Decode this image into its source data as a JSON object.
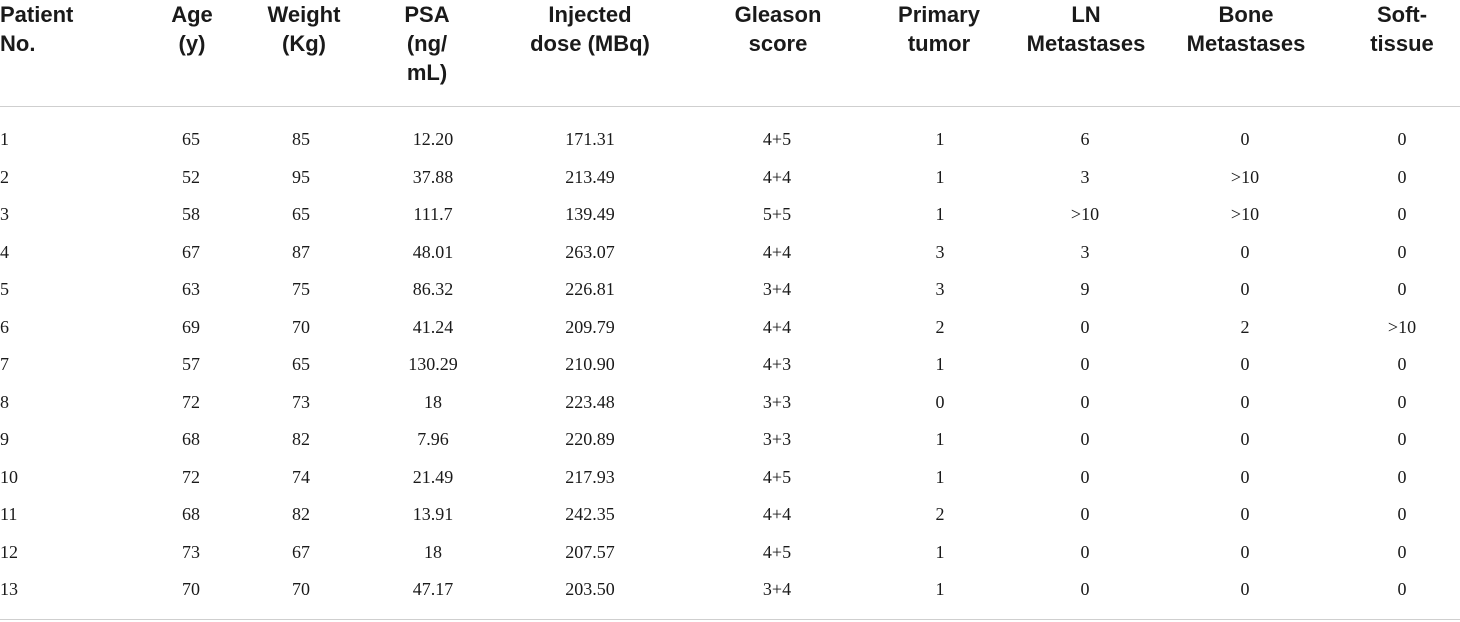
{
  "table": {
    "headers": [
      {
        "key": "patient",
        "label": "Patient No."
      },
      {
        "key": "age",
        "label": "Age (y)"
      },
      {
        "key": "weight",
        "label": "Weight (Kg)"
      },
      {
        "key": "psa",
        "label": "PSA (ng/ mL)"
      },
      {
        "key": "dose",
        "label": "Injected dose (MBq)"
      },
      {
        "key": "gleason",
        "label": "Gleason score"
      },
      {
        "key": "primary",
        "label": "Primary tumor"
      },
      {
        "key": "ln",
        "label": "LN Metastases"
      },
      {
        "key": "bone",
        "label": "Bone Metastases"
      },
      {
        "key": "soft",
        "label": "Soft-tissue"
      }
    ],
    "rows": [
      [
        "1",
        "65",
        "85",
        "12.20",
        "171.31",
        "4+5",
        "1",
        "6",
        "0",
        "0"
      ],
      [
        "2",
        "52",
        "95",
        "37.88",
        "213.49",
        "4+4",
        "1",
        "3",
        ">10",
        "0"
      ],
      [
        "3",
        "58",
        "65",
        "111.7",
        "139.49",
        "5+5",
        "1",
        ">10",
        ">10",
        "0"
      ],
      [
        "4",
        "67",
        "87",
        "48.01",
        "263.07",
        "4+4",
        "3",
        "3",
        "0",
        "0"
      ],
      [
        "5",
        "63",
        "75",
        "86.32",
        "226.81",
        "3+4",
        "3",
        "9",
        "0",
        "0"
      ],
      [
        "6",
        "69",
        "70",
        "41.24",
        "209.79",
        "4+4",
        "2",
        "0",
        "2",
        ">10"
      ],
      [
        "7",
        "57",
        "65",
        "130.29",
        "210.90",
        "4+3",
        "1",
        "0",
        "0",
        "0"
      ],
      [
        "8",
        "72",
        "73",
        "18",
        "223.48",
        "3+3",
        "0",
        "0",
        "0",
        "0"
      ],
      [
        "9",
        "68",
        "82",
        "7.96",
        "220.89",
        "3+3",
        "1",
        "0",
        "0",
        "0"
      ],
      [
        "10",
        "72",
        "74",
        "21.49",
        "217.93",
        "4+5",
        "1",
        "0",
        "0",
        "0"
      ],
      [
        "11",
        "68",
        "82",
        "13.91",
        "242.35",
        "4+4",
        "2",
        "0",
        "0",
        "0"
      ],
      [
        "12",
        "73",
        "67",
        "18",
        "207.57",
        "4+5",
        "1",
        "0",
        "0",
        "0"
      ],
      [
        "13",
        "70",
        "70",
        "47.17",
        "203.50",
        "3+4",
        "1",
        "0",
        "0",
        "0"
      ]
    ]
  }
}
